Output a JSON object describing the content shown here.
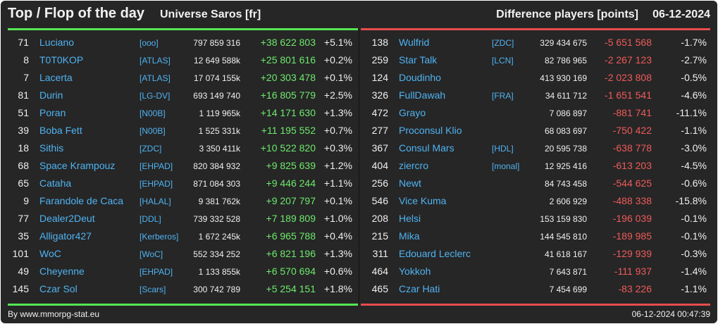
{
  "header": {
    "title": "Top / Flop of the day",
    "universe": "Universe Saros [fr]",
    "metric": "Difference players [points]",
    "date": "06-12-2024"
  },
  "top": [
    {
      "rank": "71",
      "name": "Luciano",
      "alliance": "[ooo]",
      "points": "797 859 316",
      "diff": "+38 622 803",
      "pct": "+5.1%"
    },
    {
      "rank": "8",
      "name": "T0T0KOP",
      "alliance": "[ATLAS]",
      "points": "12 649 588k",
      "diff": "+25 801 616",
      "pct": "+0.2%"
    },
    {
      "rank": "7",
      "name": "Lacerta",
      "alliance": "[ATLAS]",
      "points": "17 074 155k",
      "diff": "+20 303 478",
      "pct": "+0.1%"
    },
    {
      "rank": "81",
      "name": "Durin",
      "alliance": "[LG-DV]",
      "points": "693 149 740",
      "diff": "+16 805 779",
      "pct": "+2.5%"
    },
    {
      "rank": "51",
      "name": "Poran",
      "alliance": "[N00B]",
      "points": "1 119 965k",
      "diff": "+14 171 630",
      "pct": "+1.3%"
    },
    {
      "rank": "39",
      "name": "Boba Fett",
      "alliance": "[N00B]",
      "points": "1 525 331k",
      "diff": "+11 195 552",
      "pct": "+0.7%"
    },
    {
      "rank": "18",
      "name": "Sithis",
      "alliance": "[ZDC]",
      "points": "3 350 411k",
      "diff": "+10 522 820",
      "pct": "+0.3%"
    },
    {
      "rank": "68",
      "name": "Space Krampouz",
      "alliance": "[EHPAD]",
      "points": "820 384 932",
      "diff": "+9 825 639",
      "pct": "+1.2%"
    },
    {
      "rank": "65",
      "name": "Cataha",
      "alliance": "[EHPAD]",
      "points": "871 084 303",
      "diff": "+9 446 244",
      "pct": "+1.1%"
    },
    {
      "rank": "9",
      "name": "Farandole de Caca",
      "alliance": "[HALAL]",
      "points": "9 381 762k",
      "diff": "+9 207 797",
      "pct": "+0.1%"
    },
    {
      "rank": "77",
      "name": "Dealer2Deut",
      "alliance": "[DDL]",
      "points": "739 332 528",
      "diff": "+7 189 809",
      "pct": "+1.0%"
    },
    {
      "rank": "35",
      "name": "Alligator427",
      "alliance": "[Kerberos]",
      "points": "1 672 245k",
      "diff": "+6 965 788",
      "pct": "+0.4%"
    },
    {
      "rank": "101",
      "name": "WoC",
      "alliance": "[WoC]",
      "points": "552 334 252",
      "diff": "+6 821 196",
      "pct": "+1.3%"
    },
    {
      "rank": "49",
      "name": "Cheyenne",
      "alliance": "[EHPAD]",
      "points": "1 133 855k",
      "diff": "+6 570 694",
      "pct": "+0.6%"
    },
    {
      "rank": "145",
      "name": "Czar Sol",
      "alliance": "[Scars]",
      "points": "300 742 789",
      "diff": "+5 254 151",
      "pct": "+1.8%"
    }
  ],
  "flop": [
    {
      "rank": "138",
      "name": "Wulfrid",
      "alliance": "[ZDC]",
      "points": "329 434 675",
      "diff": "-5 651 568",
      "pct": "-1.7%"
    },
    {
      "rank": "259",
      "name": "Star Talk",
      "alliance": "[LCN]",
      "points": "82 786 965",
      "diff": "-2 267 123",
      "pct": "-2.7%"
    },
    {
      "rank": "124",
      "name": "Doudinho",
      "alliance": "",
      "points": "413 930 169",
      "diff": "-2 023 808",
      "pct": "-0.5%"
    },
    {
      "rank": "326",
      "name": "FullDawah",
      "alliance": "[FRA]",
      "points": "34 611 712",
      "diff": "-1 651 541",
      "pct": "-4.6%"
    },
    {
      "rank": "472",
      "name": "Grayo",
      "alliance": "",
      "points": "7 086 897",
      "diff": "-881 741",
      "pct": "-11.1%"
    },
    {
      "rank": "277",
      "name": "Proconsul Klio",
      "alliance": "",
      "points": "68 083 697",
      "diff": "-750 422",
      "pct": "-1.1%"
    },
    {
      "rank": "367",
      "name": "Consul Mars",
      "alliance": "[HDL]",
      "points": "20 595 738",
      "diff": "-638 778",
      "pct": "-3.0%"
    },
    {
      "rank": "404",
      "name": "ziercro",
      "alliance": "[monal]",
      "points": "12 925 416",
      "diff": "-613 203",
      "pct": "-4.5%"
    },
    {
      "rank": "256",
      "name": "Newt",
      "alliance": "",
      "points": "84 743 458",
      "diff": "-544 625",
      "pct": "-0.6%"
    },
    {
      "rank": "546",
      "name": "Vice Kuma",
      "alliance": "",
      "points": "2 606 929",
      "diff": "-488 338",
      "pct": "-15.8%"
    },
    {
      "rank": "208",
      "name": "Helsi",
      "alliance": "",
      "points": "153 159 830",
      "diff": "-196 039",
      "pct": "-0.1%"
    },
    {
      "rank": "215",
      "name": "Mika",
      "alliance": "",
      "points": "144 545 810",
      "diff": "-189 985",
      "pct": "-0.1%"
    },
    {
      "rank": "311",
      "name": "Edouard Leclerc",
      "alliance": "",
      "points": "41 618 167",
      "diff": "-129 939",
      "pct": "-0.3%"
    },
    {
      "rank": "464",
      "name": "Yokkoh",
      "alliance": "",
      "points": "7 643 871",
      "diff": "-111 937",
      "pct": "-1.4%"
    },
    {
      "rank": "465",
      "name": "Czar Hati",
      "alliance": "",
      "points": "7 454 699",
      "diff": "-83 226",
      "pct": "-1.1%"
    }
  ],
  "footer": {
    "source": "By www.mmorpg-stat.eu",
    "timestamp": "06-12-2024 00:47:39"
  },
  "colors": {
    "background": "#262626",
    "gain": "#6dea6d",
    "loss": "#f05a5a",
    "link": "#4fb3f2",
    "gain_bar": "#55e655",
    "loss_bar": "#e64d4d"
  }
}
